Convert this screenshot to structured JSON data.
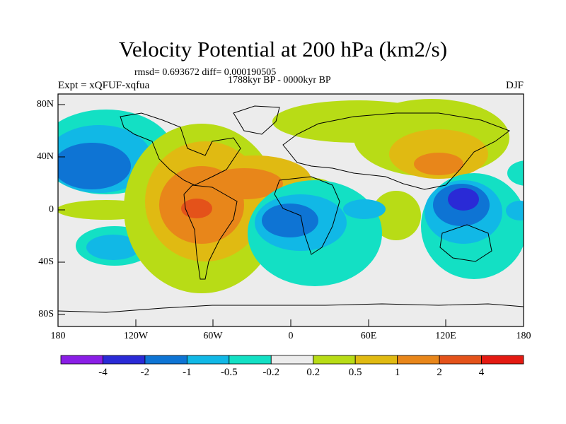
{
  "title": "Velocity Potential at 200 hPa (km2/s)",
  "stats": "rmsd= 0.693672 diff= 0.000190505",
  "period": "1788kyr BP - 0000kyr BP",
  "expt": "Expt = xQFUF-xqfua",
  "season": "DJF",
  "axes": {
    "y_labels": [
      "80N",
      "40N",
      "0",
      "40S",
      "80S"
    ],
    "x_labels": [
      "180",
      "120W",
      "60W",
      "0",
      "60E",
      "120E",
      "180"
    ]
  },
  "colorbar": {
    "colors": [
      "#8a1ee6",
      "#2a2ad6",
      "#0e74d4",
      "#11b8e6",
      "#13e0c4",
      "#ececec",
      "#b8dc16",
      "#e0ba12",
      "#e8861a",
      "#e4521a",
      "#e41a12"
    ],
    "labels": [
      "-4",
      "-2",
      "-1",
      "-0.5",
      "-0.2",
      "0.2",
      "0.5",
      "1",
      "2",
      "4"
    ]
  },
  "chart_data": {
    "type": "heatmap",
    "title": "Velocity Potential at 200 hPa (km2/s)",
    "xlim": [
      -180,
      180
    ],
    "ylim": [
      -90,
      90
    ],
    "levels": [
      -4,
      -2,
      -1,
      -0.5,
      -0.2,
      0.2,
      0.5,
      1,
      2,
      4
    ],
    "anomaly_centers": [
      {
        "lon": -155,
        "lat": 40,
        "value": -1.5
      },
      {
        "lon": -70,
        "lat": 2,
        "value": 3
      },
      {
        "lon": -45,
        "lat": 25,
        "value": 1.5
      },
      {
        "lon": 5,
        "lat": -15,
        "value": -1.2
      },
      {
        "lon": 50,
        "lat": 0,
        "value": -1
      },
      {
        "lon": 100,
        "lat": 40,
        "value": 1.5
      },
      {
        "lon": 130,
        "lat": 3,
        "value": -3
      },
      {
        "lon": -160,
        "lat": -30,
        "value": -0.7
      }
    ]
  }
}
